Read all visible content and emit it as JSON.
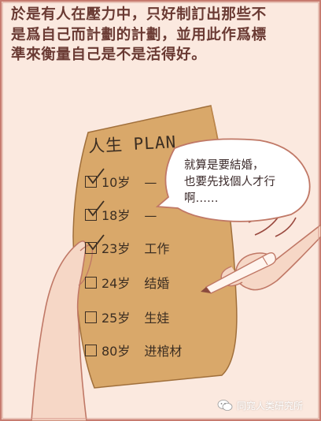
{
  "caption": {
    "lines": [
      "於是有人在壓力中，只好制訂出那些不",
      "是爲自己而計劃的計劃，並用此作爲標",
      "準來衡量自己是不是活得好。"
    ]
  },
  "plan": {
    "title": "人生 PLAN",
    "rows": [
      {
        "age": "10岁",
        "item": "",
        "tail": "—"
      },
      {
        "age": "18岁",
        "item": "",
        "tail": "—"
      },
      {
        "age": "23岁",
        "item": "工作",
        "tail": ""
      },
      {
        "age": "24岁",
        "item": "结婚",
        "tail": ""
      },
      {
        "age": "25岁",
        "item": "生娃",
        "tail": ""
      },
      {
        "age": "80岁",
        "item": "进棺材",
        "tail": ""
      }
    ]
  },
  "bubble": {
    "lines": [
      "就算是要結婚，",
      "也要先找個人才行",
      "啊……"
    ]
  },
  "watermark": {
    "icon": "wechat-icon",
    "label": "同窕人类研究所"
  },
  "colors": {
    "background": "#fbe9df",
    "paper": "#d9a86a",
    "border": "#c77b6f",
    "caption_text": "#6a3a33"
  }
}
